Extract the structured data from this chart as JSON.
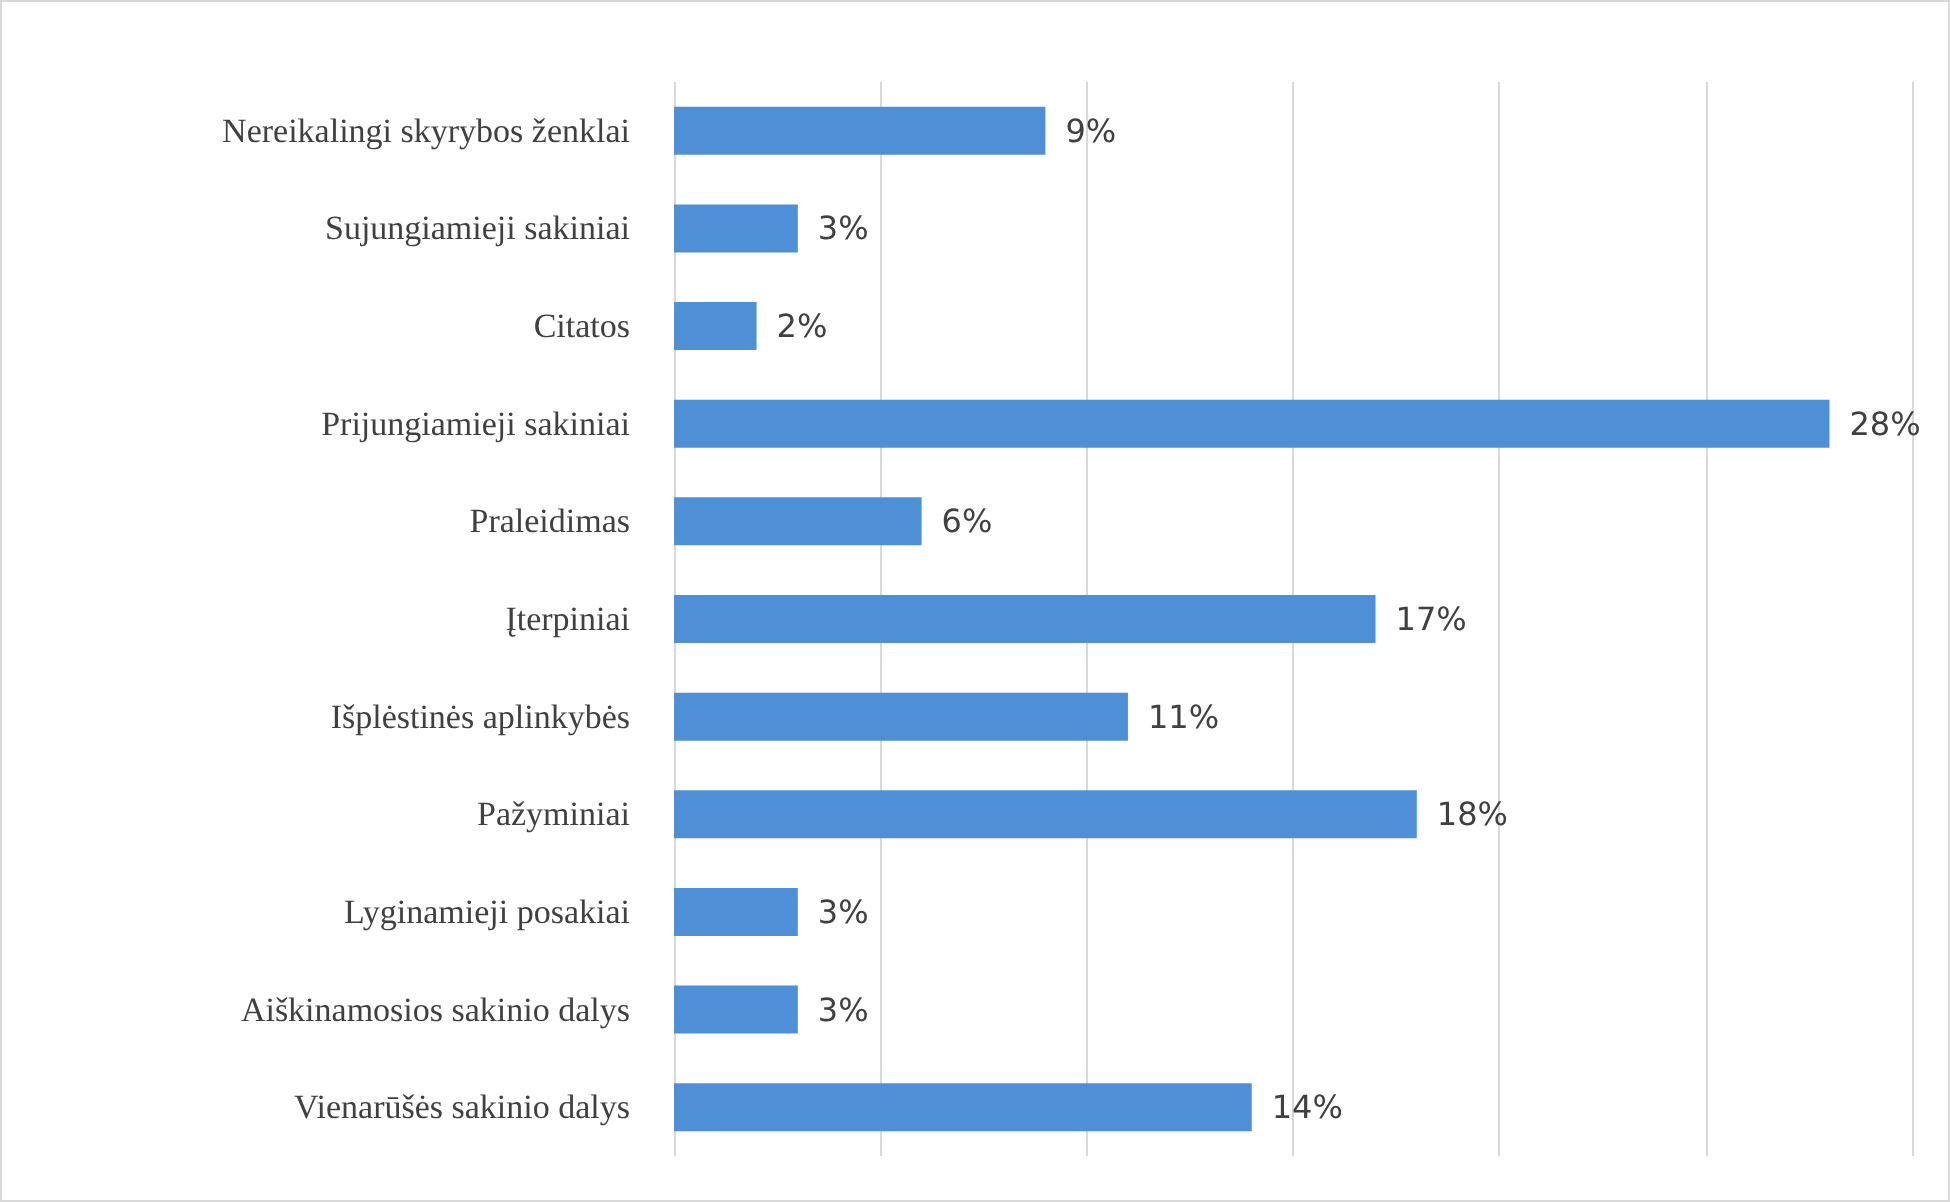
{
  "chart_data": {
    "type": "bar",
    "orientation": "horizontal",
    "categories": [
      "Nereikalingi skyrybos ženklai",
      "Sujungiamieji sakiniai",
      "Citatos",
      "Prijungiamieji sakiniai",
      "Praleidimas",
      "Įterpiniai",
      "Išplėstinės aplinkybės",
      "Pažyminiai",
      "Lyginamieji posakiai",
      "Aiškinamosios sakinio dalys",
      "Vienarūšės sakinio dalys"
    ],
    "values": [
      9,
      3,
      2,
      28,
      6,
      17,
      11,
      18,
      3,
      3,
      14
    ],
    "value_labels": [
      "9%",
      "3%",
      "2%",
      "28%",
      "6%",
      "17%",
      "11%",
      "18%",
      "3%",
      "3%",
      "14%"
    ],
    "color": "#4f8fd6",
    "xlim": [
      0,
      30
    ],
    "xticks": [
      {
        "value": 0,
        "label": null
      },
      {
        "value": 5,
        "label": null
      },
      {
        "value": 10,
        "label": null
      },
      {
        "value": 15,
        "label": null
      },
      {
        "value": 20,
        "label": null
      },
      {
        "value": 25,
        "label": null
      },
      {
        "value": 30,
        "label": null
      }
    ],
    "tick_labels": "y",
    "grid": "x"
  }
}
